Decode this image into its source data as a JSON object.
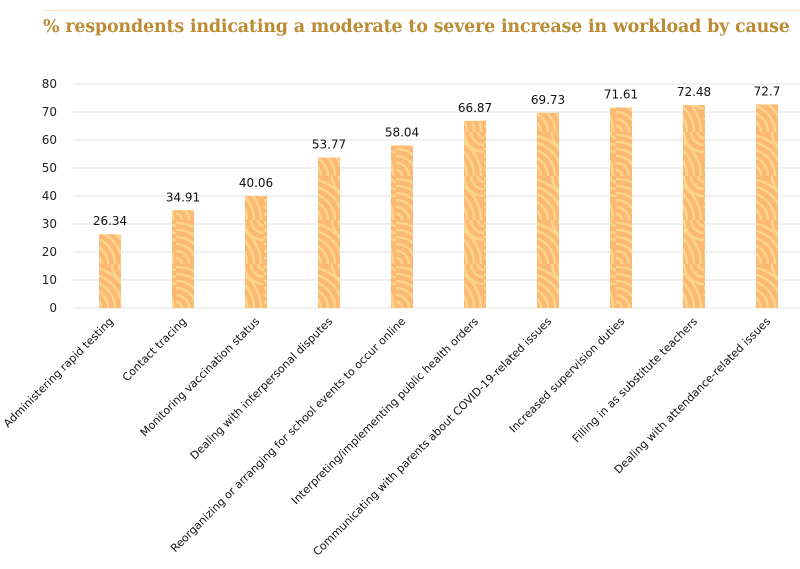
{
  "chart_data": {
    "type": "bar",
    "title": "% respondents indicating a moderate to severe increase in workload by cause",
    "xlabel": "",
    "ylabel": "",
    "ylim": [
      0,
      80
    ],
    "yticks": [
      0,
      10,
      20,
      30,
      40,
      50,
      60,
      70,
      80
    ],
    "grid": true,
    "legend": "none",
    "categories": [
      "Administering rapid testing",
      "Contact tracing",
      "Monitoring vaccination status",
      "Dealing with interpersonal disputes",
      "Reorganizing or arranging for school events to occur online",
      "Interpreting/implementing public health orders",
      "Communicating with parents about COVID-19-related issues",
      "Increased supervision duties",
      "Filling in as substitute teachers",
      "Dealing with attendance-related issues"
    ],
    "values": [
      26.34,
      34.91,
      40.06,
      53.77,
      58.04,
      66.87,
      69.73,
      71.61,
      72.48,
      72.7
    ],
    "data_labels": [
      "26.34",
      "34.91",
      "40.06",
      "53.77",
      "58.04",
      "66.87",
      "69.73",
      "71.61",
      "72.48",
      "72.7"
    ],
    "colors": {
      "bar_base": "#fdb872",
      "bar_pattern": "#fbd58c",
      "gridline": "#e6e6e6",
      "title": "#bb8c34",
      "top_rule": "#fbe3c4"
    }
  }
}
